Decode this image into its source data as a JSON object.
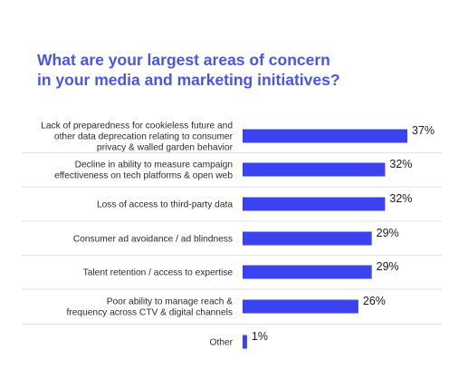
{
  "title_lines": [
    "What are your largest areas of concern",
    "in your media and marketing initiatives?"
  ],
  "bar_color": "#3b43f0",
  "chart_data": {
    "type": "bar",
    "orientation": "horizontal",
    "title": "What are your largest areas of concern in your media and marketing initiatives?",
    "categories": [
      [
        "Lack of preparedness for cookieless future and",
        "other data deprecation relating to consumer",
        "privacy & walled garden behavior"
      ],
      [
        "Decline in ability to measure campaign",
        "effectiveness on tech platforms & open web"
      ],
      [
        "Loss of access to third-party data"
      ],
      [
        "Consumer ad avoidance / ad blindness"
      ],
      [
        "Talent retention / access to expertise"
      ],
      [
        "Poor ability to manage reach &",
        "frequency across CTV & digital channels"
      ],
      [
        "Other"
      ]
    ],
    "values": [
      37,
      32,
      32,
      29,
      29,
      26,
      1
    ],
    "value_labels": [
      "37%",
      "32%",
      "32%",
      "29%",
      "29%",
      "26%",
      "1%"
    ],
    "unit": "%",
    "xlim": [
      0,
      37
    ],
    "grid": false,
    "legend": "none"
  }
}
